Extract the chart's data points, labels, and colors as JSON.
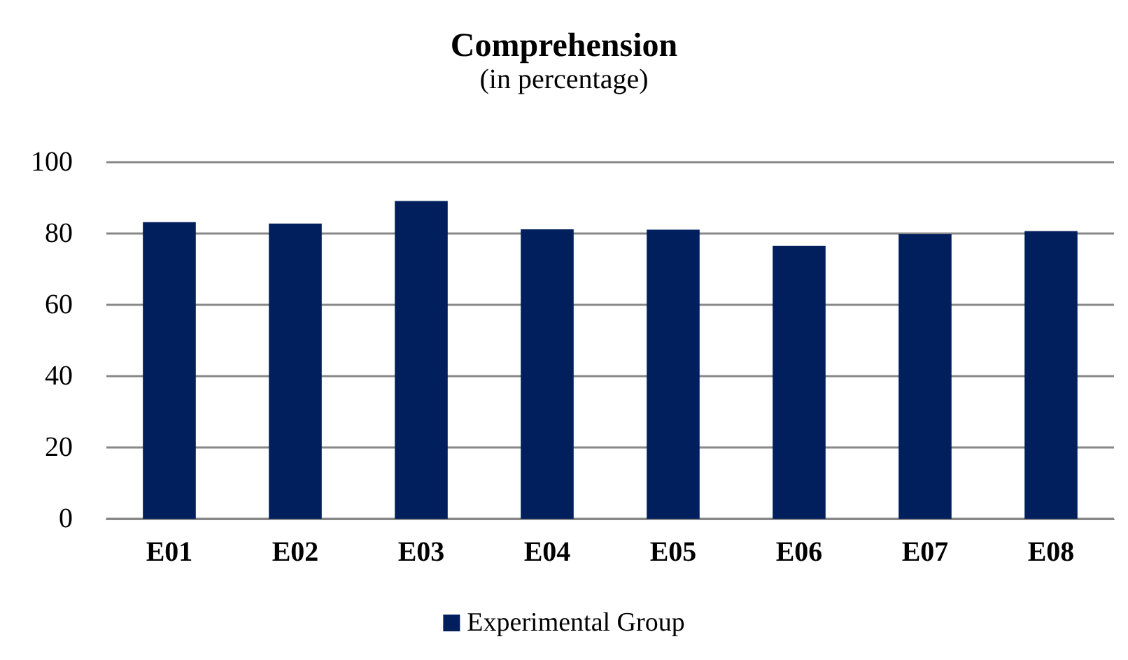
{
  "chart_data": {
    "type": "bar",
    "title": "Comprehension",
    "subtitle": "(in percentage)",
    "categories": [
      "E01",
      "E02",
      "E03",
      "E04",
      "E05",
      "E06",
      "E07",
      "E08"
    ],
    "series": [
      {
        "name": "Experimental Group",
        "color": "#001f5c",
        "values": [
          83.2,
          82.8,
          89.1,
          81.2,
          81.1,
          76.5,
          79.8,
          80.7
        ]
      }
    ],
    "ylim": [
      0,
      100
    ],
    "yticks": [
      0,
      20,
      40,
      60,
      80,
      100
    ],
    "grid": "y",
    "legend": "bottom"
  }
}
